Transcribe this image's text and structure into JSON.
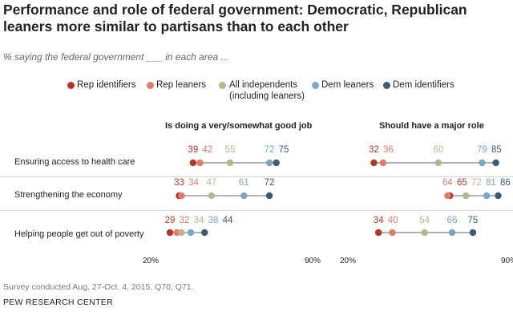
{
  "title": "Performance and role of federal government: Democratic, Republican leaners more similar to partisans than to each other",
  "subtitle": "% saying the federal government ___ in each area ...",
  "colors": {
    "rep_identifiers": "#b5352b",
    "rep_leaners": "#e27a6e",
    "all_independents": "#bdb48c",
    "dem_leaners": "#7aa6c8",
    "dem_identifiers": "#3d5b75",
    "line": "#999999"
  },
  "legend": [
    {
      "label": "Rep identifiers",
      "color_key": "rep_identifiers"
    },
    {
      "label": "Rep leaners",
      "color_key": "rep_leaners"
    },
    {
      "label": "All independents",
      "sub": "(including leaners)",
      "color_key": "all_independents"
    },
    {
      "label": "Dem leaners",
      "color_key": "dem_leaners"
    },
    {
      "label": "Dem identifiers",
      "color_key": "dem_identifiers"
    }
  ],
  "rows": [
    "Ensuring access to health care",
    "Strengthening the economy",
    "Helping people get out of poverty"
  ],
  "chart_data": [
    {
      "type": "scatter",
      "title": "Is doing a very/somewhat good job",
      "categories": [
        "Ensuring access to health care",
        "Strengthening the economy",
        "Helping people get out of poverty"
      ],
      "xlim": [
        20,
        90
      ],
      "xtick_labels": [
        "20%",
        "90%"
      ],
      "series": [
        {
          "name": "Rep identifiers",
          "values": [
            39,
            33,
            29
          ]
        },
        {
          "name": "Rep leaners",
          "values": [
            42,
            34,
            32
          ]
        },
        {
          "name": "All independents",
          "values": [
            55,
            47,
            34
          ]
        },
        {
          "name": "Dem leaners",
          "values": [
            72,
            61,
            38
          ]
        },
        {
          "name": "Dem identifiers",
          "values": [
            75,
            72,
            44
          ]
        }
      ]
    },
    {
      "type": "scatter",
      "title": "Should have a major role",
      "categories": [
        "Ensuring access to health care",
        "Strengthening the economy",
        "Helping people get out of poverty"
      ],
      "xlim": [
        20,
        90
      ],
      "xtick_labels": [
        "20%",
        "90%"
      ],
      "series": [
        {
          "name": "Rep identifiers",
          "values": [
            32,
            65,
            34
          ]
        },
        {
          "name": "Rep leaners",
          "values": [
            36,
            64,
            40
          ]
        },
        {
          "name": "All independents",
          "values": [
            60,
            72,
            54
          ]
        },
        {
          "name": "Dem leaners",
          "values": [
            79,
            81,
            66
          ]
        },
        {
          "name": "Dem identifiers",
          "values": [
            85,
            86,
            75
          ]
        }
      ]
    }
  ],
  "note": "Survey conducted Aug. 27-Oct. 4, 2015. Q70, Q71.",
  "source": "PEW RESEARCH CENTER"
}
